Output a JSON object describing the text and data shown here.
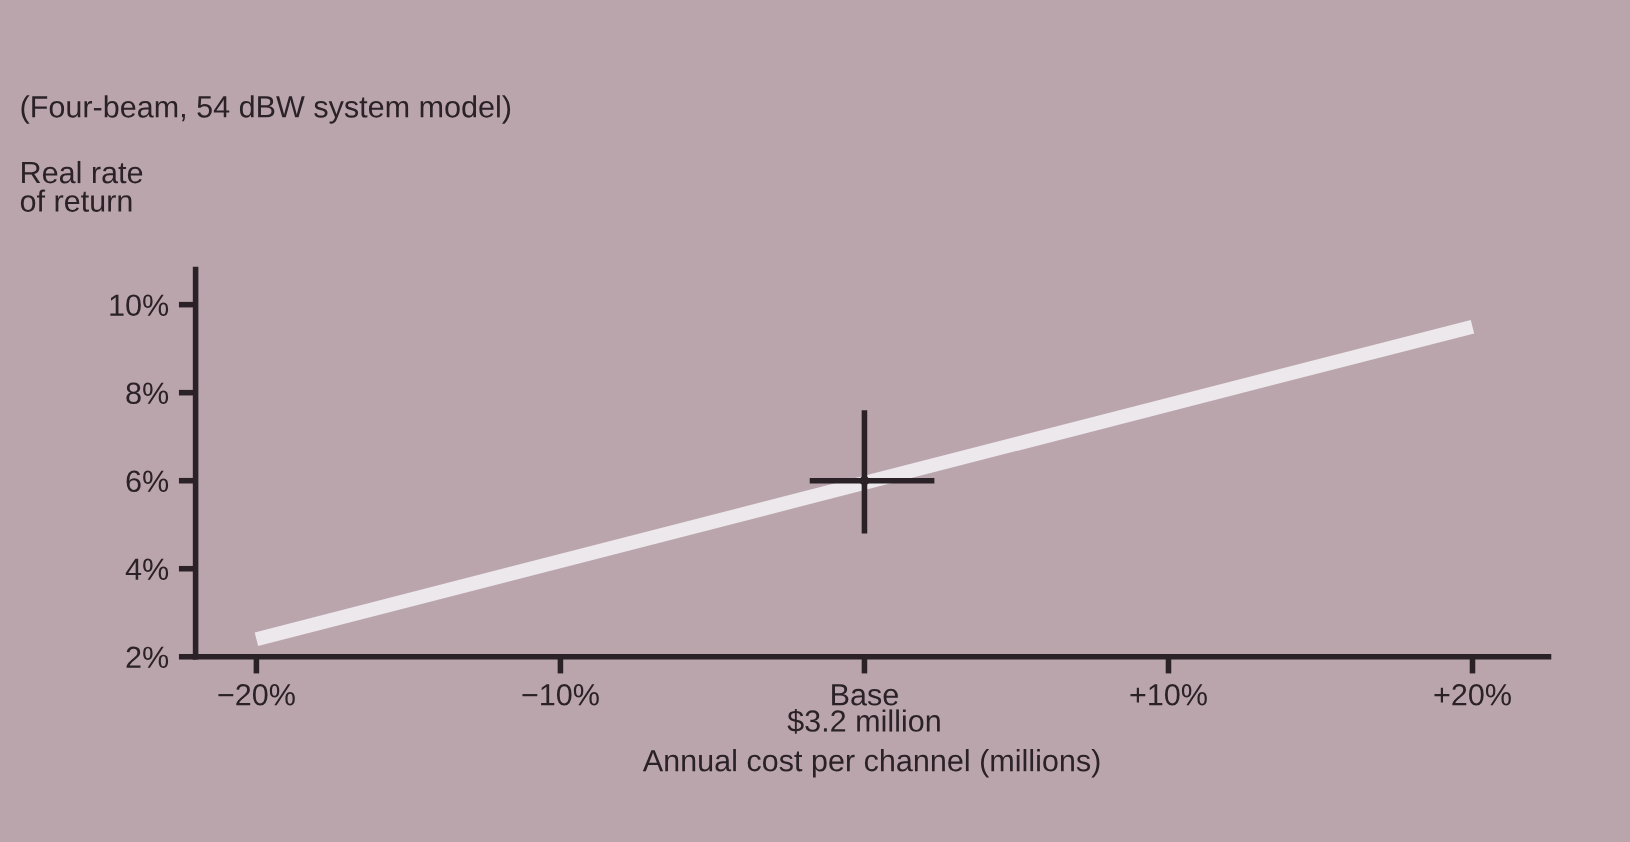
{
  "chart_data": {
    "type": "line",
    "title": "(Four-beam, 54 dBW system model)",
    "ylabel": "Real rate\nof return",
    "xlabel": "Annual cost per channel (millions)",
    "x": [
      -20,
      20
    ],
    "series": [
      {
        "color": "#ece8ec",
        "values": [
          2.4,
          9.5
        ],
        "marker": "none"
      },
      {
        "type": "scatter",
        "color": "#2a2226",
        "x": [
          0
        ],
        "values": [
          6.0
        ],
        "marker": "circle",
        "errors": [
          [
            4.8,
            7.6
          ]
        ],
        "xerrors": [
          [
            -1.8,
            2.3
          ]
        ]
      }
    ],
    "xlim": [
      -22,
      22.5
    ],
    "ylim": [
      2,
      10.8
    ],
    "xticks": [
      {
        "value": -20,
        "label": "−20%"
      },
      {
        "value": -10,
        "label": "−10%"
      },
      {
        "value": 0,
        "label": "Base\n$3.2 million"
      },
      {
        "value": 10,
        "label": "+10%"
      },
      {
        "value": 20,
        "label": "+20%"
      }
    ],
    "yticks": [
      {
        "value": 2,
        "label": "2%"
      },
      {
        "value": 4,
        "label": "4%"
      },
      {
        "value": 6,
        "label": "6%"
      },
      {
        "value": 8,
        "label": "8%"
      },
      {
        "value": 10,
        "label": "10%"
      }
    ],
    "grid": false,
    "legend": false
  }
}
